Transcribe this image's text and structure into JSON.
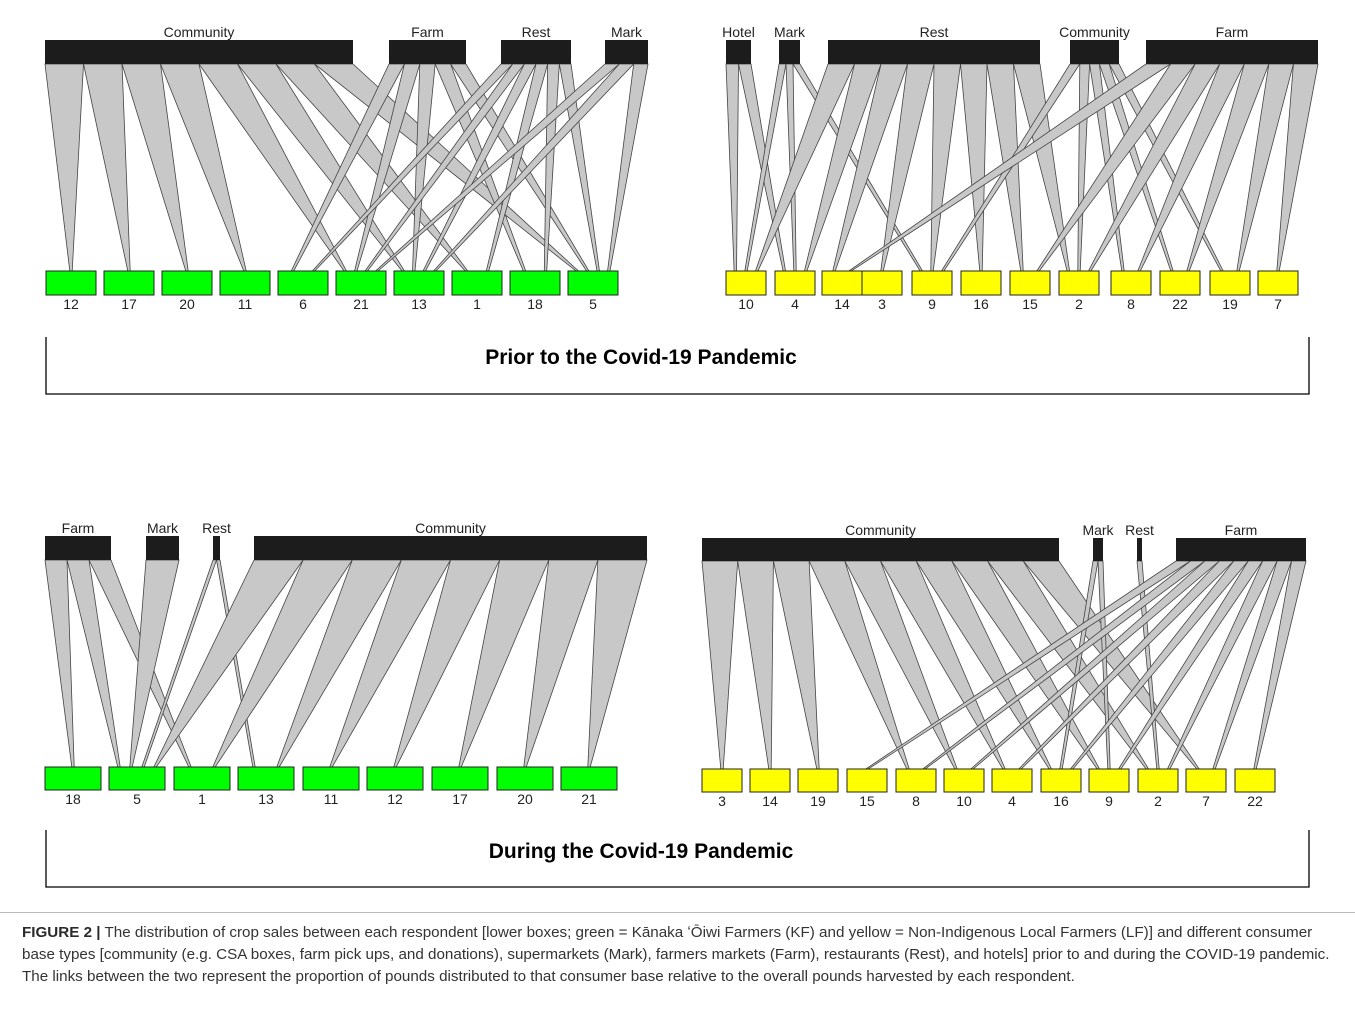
{
  "panels": [
    {
      "title": "Prior to the Covid-19 Pandemic",
      "networks": [
        {
          "bottom_color": "#00ff00",
          "consumers": [
            "Community",
            "Farm",
            "Rest",
            "Mark"
          ],
          "respondents": [
            "12",
            "17",
            "20",
            "11",
            "6",
            "21",
            "13",
            "1",
            "18",
            "5"
          ],
          "links": [
            [
              "Community",
              "12"
            ],
            [
              "Community",
              "17"
            ],
            [
              "Community",
              "20"
            ],
            [
              "Community",
              "11"
            ],
            [
              "Community",
              "21"
            ],
            [
              "Community",
              "13"
            ],
            [
              "Community",
              "1"
            ],
            [
              "Community",
              "5"
            ],
            [
              "Farm",
              "6"
            ],
            [
              "Farm",
              "21"
            ],
            [
              "Farm",
              "13"
            ],
            [
              "Farm",
              "18"
            ],
            [
              "Farm",
              "5"
            ],
            [
              "Rest",
              "6"
            ],
            [
              "Rest",
              "21"
            ],
            [
              "Rest",
              "13"
            ],
            [
              "Rest",
              "1"
            ],
            [
              "Rest",
              "18"
            ],
            [
              "Rest",
              "5"
            ],
            [
              "Mark",
              "21"
            ],
            [
              "Mark",
              "13"
            ],
            [
              "Mark",
              "5"
            ]
          ]
        },
        {
          "bottom_color": "#ffff00",
          "consumers": [
            "Hotel",
            "Mark",
            "Rest",
            "Community",
            "Farm"
          ],
          "respondents": [
            "10",
            "4",
            "14",
            "3",
            "9",
            "16",
            "15",
            "2",
            "8",
            "22",
            "19",
            "7"
          ],
          "links": [
            [
              "Hotel",
              "10"
            ],
            [
              "Hotel",
              "4"
            ],
            [
              "Mark",
              "10"
            ],
            [
              "Mark",
              "4"
            ],
            [
              "Mark",
              "9"
            ],
            [
              "Rest",
              "10"
            ],
            [
              "Rest",
              "4"
            ],
            [
              "Rest",
              "14"
            ],
            [
              "Rest",
              "3"
            ],
            [
              "Rest",
              "9"
            ],
            [
              "Rest",
              "16"
            ],
            [
              "Rest",
              "15"
            ],
            [
              "Rest",
              "2"
            ],
            [
              "Community",
              "9"
            ],
            [
              "Community",
              "2"
            ],
            [
              "Community",
              "8"
            ],
            [
              "Community",
              "22"
            ],
            [
              "Community",
              "19"
            ],
            [
              "Farm",
              "14"
            ],
            [
              "Farm",
              "15"
            ],
            [
              "Farm",
              "2"
            ],
            [
              "Farm",
              "8"
            ],
            [
              "Farm",
              "22"
            ],
            [
              "Farm",
              "19"
            ],
            [
              "Farm",
              "7"
            ]
          ]
        }
      ]
    },
    {
      "title": "During the Covid-19 Pandemic",
      "networks": [
        {
          "bottom_color": "#00ff00",
          "consumers": [
            "Farm",
            "Mark",
            "Rest",
            "Community"
          ],
          "respondents": [
            "18",
            "5",
            "1",
            "13",
            "11",
            "12",
            "17",
            "20",
            "21"
          ],
          "links": [
            [
              "Farm",
              "18"
            ],
            [
              "Farm",
              "5"
            ],
            [
              "Farm",
              "1"
            ],
            [
              "Mark",
              "5"
            ],
            [
              "Rest",
              "5"
            ],
            [
              "Rest",
              "13"
            ],
            [
              "Community",
              "5"
            ],
            [
              "Community",
              "1"
            ],
            [
              "Community",
              "13"
            ],
            [
              "Community",
              "11"
            ],
            [
              "Community",
              "12"
            ],
            [
              "Community",
              "17"
            ],
            [
              "Community",
              "20"
            ],
            [
              "Community",
              "21"
            ]
          ]
        },
        {
          "bottom_color": "#ffff00",
          "consumers": [
            "Community",
            "Mark",
            "Rest",
            "Farm"
          ],
          "respondents": [
            "3",
            "14",
            "19",
            "15",
            "8",
            "10",
            "4",
            "16",
            "9",
            "2",
            "7",
            "22"
          ],
          "links": [
            [
              "Community",
              "3"
            ],
            [
              "Community",
              "14"
            ],
            [
              "Community",
              "19"
            ],
            [
              "Community",
              "8"
            ],
            [
              "Community",
              "10"
            ],
            [
              "Community",
              "4"
            ],
            [
              "Community",
              "16"
            ],
            [
              "Community",
              "9"
            ],
            [
              "Community",
              "2"
            ],
            [
              "Community",
              "7"
            ],
            [
              "Mark",
              "16"
            ],
            [
              "Mark",
              "9"
            ],
            [
              "Rest",
              "2"
            ],
            [
              "Farm",
              "15"
            ],
            [
              "Farm",
              "8"
            ],
            [
              "Farm",
              "10"
            ],
            [
              "Farm",
              "4"
            ],
            [
              "Farm",
              "16"
            ],
            [
              "Farm",
              "9"
            ],
            [
              "Farm",
              "2"
            ],
            [
              "Farm",
              "7"
            ],
            [
              "Farm",
              "22"
            ]
          ]
        }
      ]
    }
  ],
  "caption": {
    "label": "FIGURE 2 |",
    "text": "The distribution of crop sales between each respondent [lower boxes; green = Kānaka ʻŌiwi Farmers (KF) and yellow = Non-Indigenous Local Farmers (LF)] and different consumer base types [community (e.g. CSA boxes, farm pick ups, and donations), supermarkets (Mark), farmers markets (Farm), restaurants (Rest), and hotels] prior to and during the COVID-19 pandemic. The links between the two represent the proportion of pounds distributed to that consumer base relative to the overall pounds harvested by each respondent."
  },
  "chart_data": [
    {
      "type": "bipartite",
      "title": "Prior to the Covid-19 Pandemic",
      "top_nodes": [
        "Community",
        "Farm",
        "Rest",
        "Mark"
      ],
      "bottom_nodes": [
        "12",
        "17",
        "20",
        "11",
        "6",
        "21",
        "13",
        "1",
        "18",
        "5"
      ],
      "bottom_group": "Kānaka ʻŌiwi Farmers (KF)",
      "bottom_color": "#00ff00"
    },
    {
      "type": "bipartite",
      "title": "Prior to the Covid-19 Pandemic",
      "top_nodes": [
        "Hotel",
        "Mark",
        "Rest",
        "Community",
        "Farm"
      ],
      "bottom_nodes": [
        "10",
        "4",
        "14",
        "3",
        "9",
        "16",
        "15",
        "2",
        "8",
        "22",
        "19",
        "7"
      ],
      "bottom_group": "Non-Indigenous Local Farmers (LF)",
      "bottom_color": "#ffff00"
    },
    {
      "type": "bipartite",
      "title": "During the Covid-19 Pandemic",
      "top_nodes": [
        "Farm",
        "Mark",
        "Rest",
        "Community"
      ],
      "bottom_nodes": [
        "18",
        "5",
        "1",
        "13",
        "11",
        "12",
        "17",
        "20",
        "21"
      ],
      "bottom_group": "Kānaka ʻŌiwi Farmers (KF)",
      "bottom_color": "#00ff00"
    },
    {
      "type": "bipartite",
      "title": "During the Covid-19 Pandemic",
      "top_nodes": [
        "Community",
        "Mark",
        "Rest",
        "Farm"
      ],
      "bottom_nodes": [
        "3",
        "14",
        "19",
        "15",
        "8",
        "10",
        "4",
        "16",
        "9",
        "2",
        "7",
        "22"
      ],
      "bottom_group": "Non-Indigenous Local Farmers (LF)",
      "bottom_color": "#ffff00"
    }
  ]
}
